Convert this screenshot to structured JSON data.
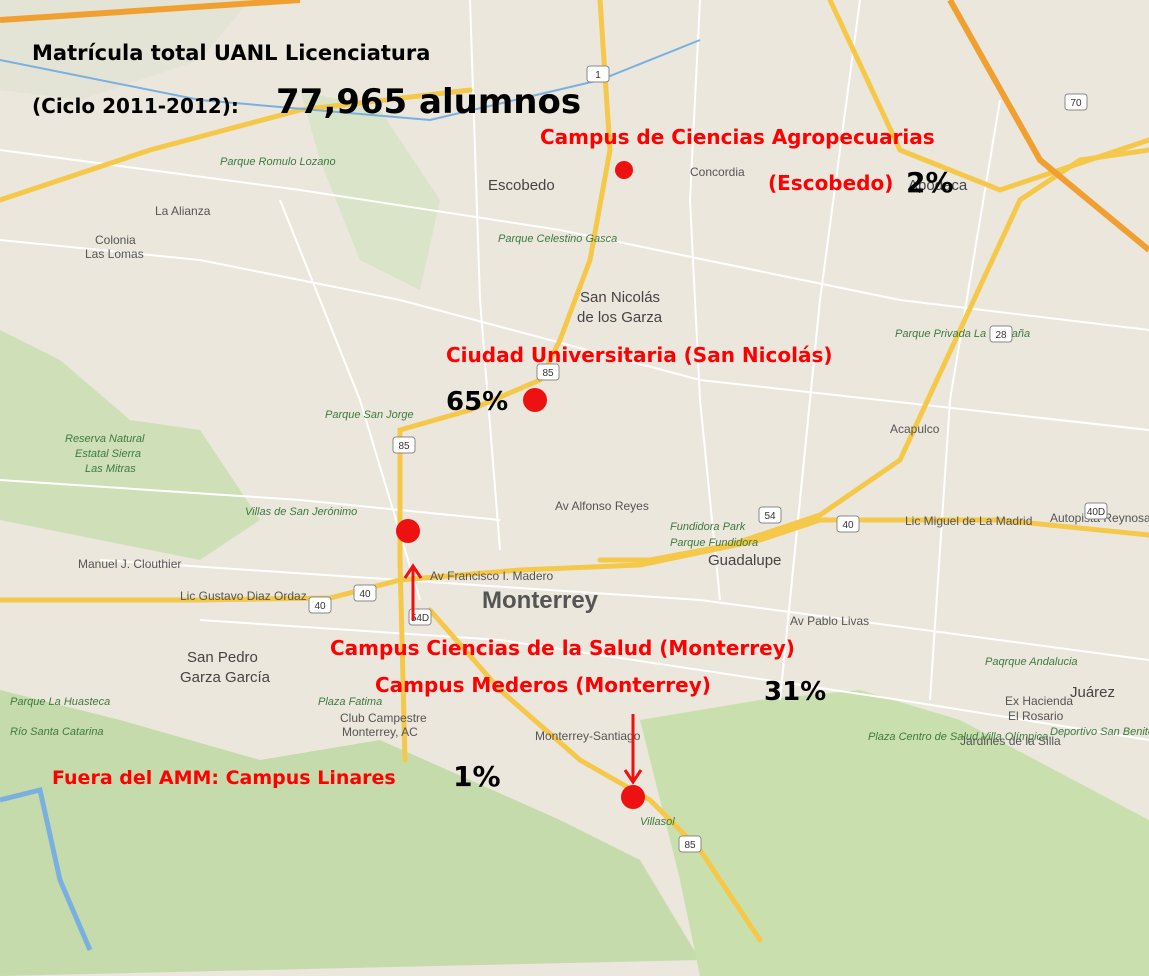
{
  "title": {
    "line1": "Matrícula total UANL Licenciatura",
    "line2": "(Ciclo 2011-2012):",
    "total": "77,965 alumnos"
  },
  "campuses": [
    {
      "name": "Campus de Ciencias Agropecuarias",
      "name2": "(Escobedo)",
      "share": "2%"
    },
    {
      "name": "Ciudad Universitaria (San Nicolás)",
      "share": "65%"
    },
    {
      "name": "Campus Ciencias de la Salud (Monterrey)"
    },
    {
      "name": "Campus Mederos (Monterrey)",
      "share": "31%"
    },
    {
      "name": "Fuera del AMM: Campus Linares",
      "share": "1%"
    }
  ],
  "map_labels": [
    "Escobedo",
    "San Nicolás",
    "de los Garza",
    "Monterrey",
    "Guadalupe",
    "San Pedro",
    "Garza García",
    "Juárez",
    "Apodaca",
    "La Alianza",
    "Colonia",
    "Las Lomas",
    "Concordia",
    "Parque Romulo Lozano",
    "Parque Celestino Gasca",
    "Parque Privada La Castaña",
    "Reserva Natural",
    "Estatal Sierra",
    "Las Mitras",
    "Parque San Jorge",
    "Villas de San Jerónimo",
    "Fundidora Park",
    "Parque Fundidora",
    "Plaza Fatima",
    "Club Campestre",
    "Monterrey, AC",
    "Plaza Centro de Salud Villa Olímpica",
    "Ex Hacienda",
    "El Rosario",
    "Jardines de la Silla",
    "Deportivo San Benito",
    "Paqrque Andalucia",
    "Villasol",
    "Av Francisco I. Madero",
    "Av Pablo Livas",
    "Lic Gustavo Diaz Ordaz",
    "Av Alfonso Reyes",
    "Monterrey-Santiago",
    "Manuel J. Clouthier",
    "Parque La Huasteca",
    "Río Santa Catarina",
    "Acapulco",
    "Autopista Reynosa",
    "Lic Miguel de La Madrid"
  ],
  "highway_shields": [
    "1",
    "70",
    "85",
    "85",
    "54",
    "40",
    "40",
    "40",
    "40D",
    "28",
    "54D",
    "85"
  ]
}
